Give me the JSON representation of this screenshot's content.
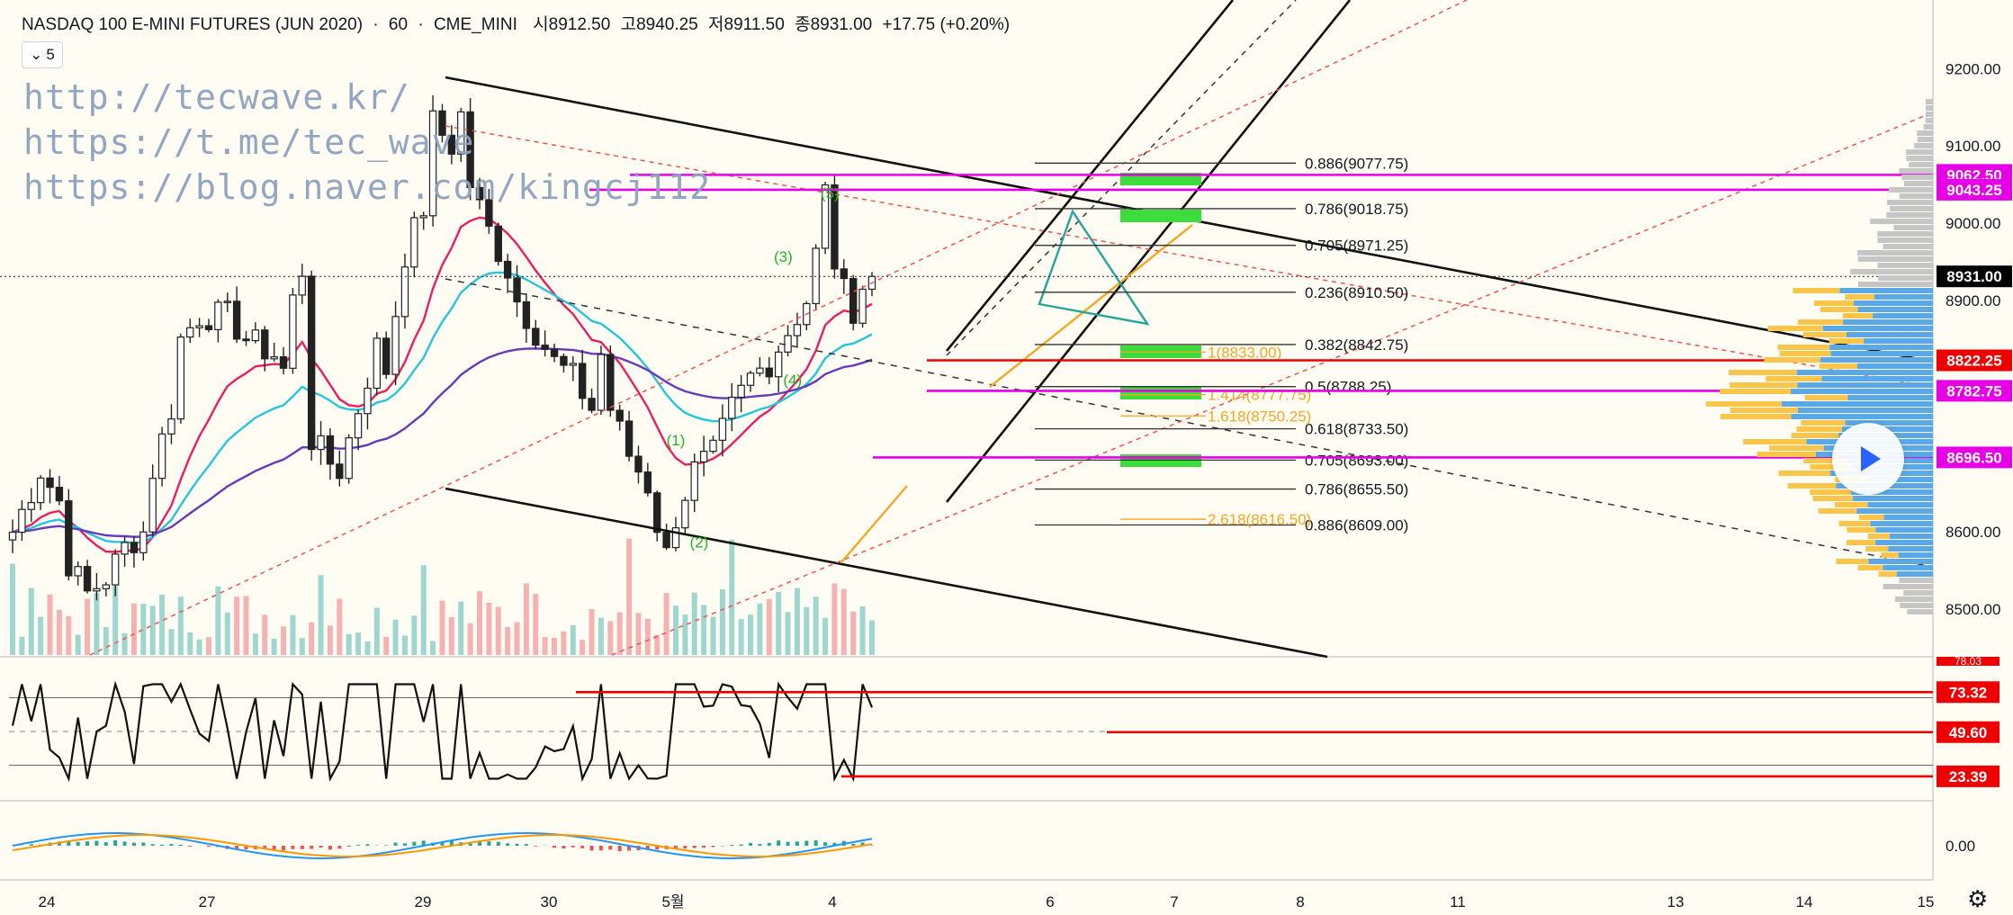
{
  "header": {
    "symbol": "NASDAQ 100 E-MINI FUTURES (JUN 2020)",
    "sep1": "·",
    "interval": "60",
    "sep2": "·",
    "exchange": "CME_MINI",
    "open": "시8912.50",
    "high": "고8940.25",
    "low": "저8911.50",
    "close": "종8931.00",
    "change": "+17.75 (+0.20%)",
    "collapse_count": "5"
  },
  "watermark": [
    "http://tecwave.kr/",
    "https://t.me/tec_wave",
    "https://blog.naver.com/kingcj112"
  ],
  "colors": {
    "background": "#fffdf3",
    "up_candle": "#26a69a",
    "down_candle": "#ef5350",
    "ema_fast": "#e91e63",
    "ema_mid": "#26c6da",
    "ema_slow": "#673ab7",
    "trendline": "#000000",
    "magenta_level": "#e600e6",
    "red_level": "#ee0000",
    "fib_ext": "#f5a623",
    "green_zone": "#3ddc3d",
    "volume_profile_up": "#5aa9e6",
    "volume_profile_down": "#f9c54b"
  },
  "chart_data": {
    "type": "candlestick",
    "title": "NASDAQ 100 E-MINI FUTURES (JUN 2020)",
    "interval": "60",
    "price_axis": {
      "ylim": [
        8460,
        9240
      ],
      "ticks": [
        "9200.00",
        "9100.00",
        "9000.00",
        "8900.00",
        "8600.00",
        "8500.00"
      ]
    },
    "time_axis": {
      "ticks": [
        "24",
        "27",
        "29",
        "30",
        "5월",
        "4",
        "6",
        "7",
        "8",
        "11",
        "13",
        "14",
        "15"
      ]
    },
    "last_price": "8931.00",
    "price_levels": [
      {
        "value": 9062.5,
        "label": "9062.50",
        "color": "#e600e6"
      },
      {
        "value": 9043.25,
        "label": "9043.25",
        "color": "#e600e6"
      },
      {
        "value": 8822.25,
        "label": "8822.25",
        "color": "#ee0000"
      },
      {
        "value": 8782.75,
        "label": "8782.75",
        "color": "#e600e6"
      },
      {
        "value": 8696.5,
        "label": "8696.50",
        "color": "#e600e6"
      }
    ],
    "fib_retracement": [
      {
        "text": "0.886(9077.75)",
        "value": 9077.75
      },
      {
        "text": "0.786(9018.75)",
        "value": 9018.75
      },
      {
        "text": "0.705(8971.25)",
        "value": 8971.25
      },
      {
        "text": "0.236(8910.50)",
        "value": 8910.5
      },
      {
        "text": "0.382(8842.75)",
        "value": 8842.75
      },
      {
        "text": "0.5(8788.25)",
        "value": 8788.25
      },
      {
        "text": "0.618(8733.50)",
        "value": 8733.5
      },
      {
        "text": "0.705(8693.00)",
        "value": 8693.0
      },
      {
        "text": "0.786(8655.50)",
        "value": 8655.5
      },
      {
        "text": "0.886(8609.00)",
        "value": 8609.0
      }
    ],
    "fib_extension": [
      {
        "text": "1(8833.00)",
        "value": 8833.0
      },
      {
        "text": "1.414(8777.75)",
        "value": 8777.75
      },
      {
        "text": "1.618(8750.25)",
        "value": 8750.25
      },
      {
        "text": "2.618(8616.50)",
        "value": 8616.5
      }
    ],
    "wave_labels": [
      {
        "text": "(1)",
        "t": 70,
        "price": 8712
      },
      {
        "text": "(2)",
        "t": 72.5,
        "price": 8580
      },
      {
        "text": "(3)",
        "t": 81.5,
        "price": 8950
      },
      {
        "text": "(4)",
        "t": 82.5,
        "price": 8790
      },
      {
        "text": "(5)",
        "t": 86.5,
        "price": 9032
      }
    ],
    "rsi": {
      "levels": [
        "73.32",
        "49.60",
        "23.39"
      ],
      "top_label": "78.03",
      "ylim": [
        10,
        90
      ]
    },
    "macd": {
      "zero_label": "0.00"
    }
  }
}
